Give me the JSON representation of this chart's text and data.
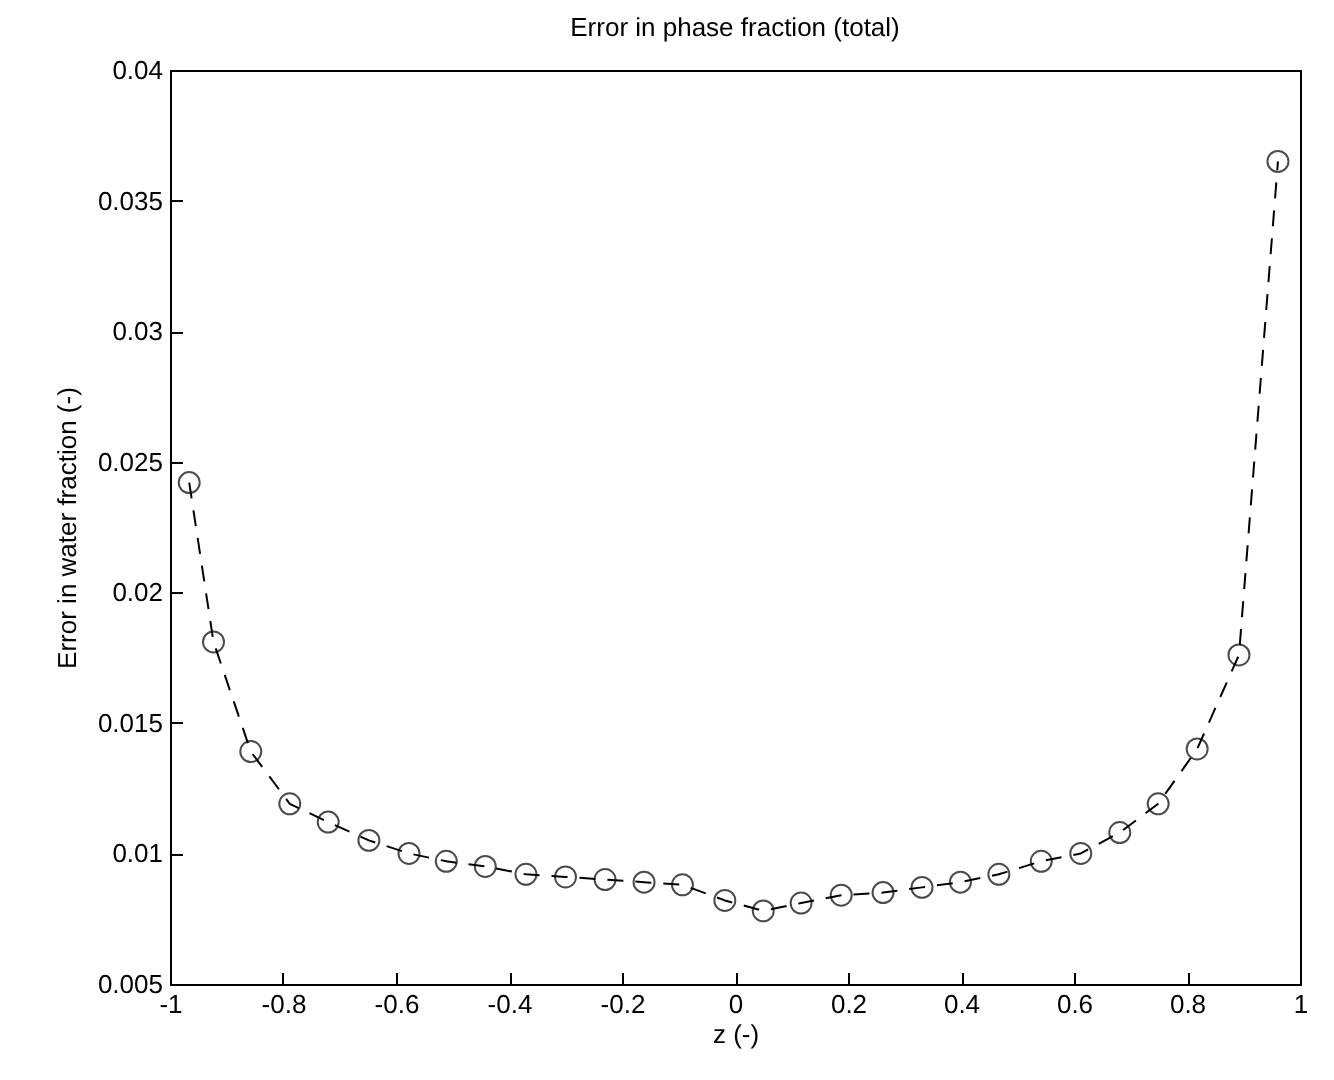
{
  "chart_data": {
    "type": "line",
    "title": "Error in phase fraction (total)",
    "xlabel": "z (-)",
    "ylabel": "Error in water fraction (-)",
    "x": [
      -0.966,
      -0.923,
      -0.857,
      -0.788,
      -0.72,
      -0.648,
      -0.577,
      -0.511,
      -0.442,
      -0.37,
      -0.3,
      -0.23,
      -0.161,
      -0.093,
      -0.018,
      0.05,
      0.117,
      0.188,
      0.262,
      0.331,
      0.399,
      0.467,
      0.542,
      0.612,
      0.681,
      0.749,
      0.818,
      0.892,
      0.961
    ],
    "series": [
      {
        "color": "#000000",
        "values": [
          0.0242,
          0.0181,
          0.0139,
          0.0119,
          0.0112,
          0.0105,
          0.01,
          0.0097,
          0.0095,
          0.0092,
          0.0091,
          0.009,
          0.0089,
          0.0088,
          0.0082,
          0.0078,
          0.0081,
          0.0084,
          0.0085,
          0.0087,
          0.0089,
          0.0092,
          0.0097,
          0.01,
          0.0108,
          0.0119,
          0.014,
          0.0176,
          0.0365
        ]
      }
    ],
    "xlim": [
      -1,
      1
    ],
    "xticks": [
      -1,
      -0.8,
      -0.6,
      -0.4,
      -0.2,
      0,
      0.2,
      0.4,
      0.6,
      0.8,
      1
    ],
    "ylim": [
      0.005,
      0.04
    ],
    "yticks": [
      0.005,
      0.01,
      0.015,
      0.02,
      0.025,
      0.03,
      0.035,
      0.04
    ],
    "marker": "circle",
    "line_style": "dashed",
    "grid": false
  }
}
